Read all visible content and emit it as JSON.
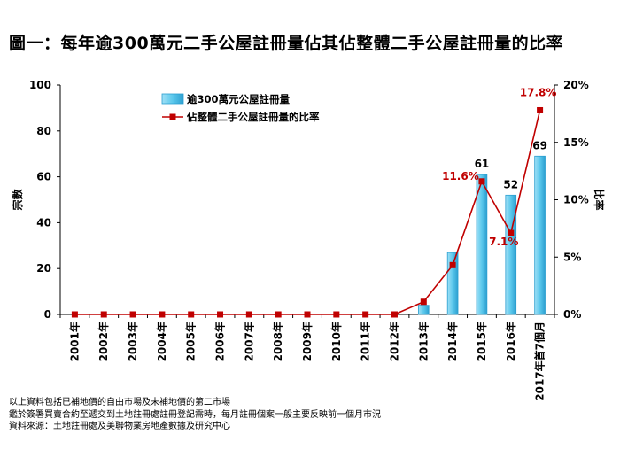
{
  "title": "圖一：每年逾300萬元二手公屋註冊量佔其佔整體二手公屋註冊量的比率",
  "chart_data": {
    "type": "bar+line",
    "categories": [
      "2001年",
      "2002年",
      "2003年",
      "2004年",
      "2005年",
      "2006年",
      "2007年",
      "2008年",
      "2009年",
      "2010年",
      "2011年",
      "2012年",
      "2013年",
      "2014年",
      "2015年",
      "2016年",
      "2017年首7個月"
    ],
    "series": [
      {
        "name": "逾300萬元公屋註冊量",
        "type": "bar",
        "axis": "left",
        "color": "#5bc8ec",
        "values": [
          0,
          0,
          0,
          0,
          0,
          0,
          0,
          0,
          0,
          0,
          0,
          0,
          4,
          27,
          61,
          52,
          69
        ],
        "data_labels": {
          "14": "61",
          "15": "52",
          "16": "69"
        }
      },
      {
        "name": "佔整體二手公屋註冊量的比率",
        "type": "line",
        "axis": "right",
        "color": "#c00000",
        "values": [
          0,
          0,
          0,
          0,
          0,
          0,
          0,
          0,
          0,
          0,
          0,
          0,
          1.1,
          4.3,
          11.6,
          7.1,
          17.8
        ],
        "data_labels": {
          "14": "11.6%",
          "15": "7.1%",
          "16": "17.8%"
        }
      }
    ],
    "ylabel": "宗數",
    "ylim": [
      0,
      100
    ],
    "yticks": [
      "0",
      "20",
      "40",
      "60",
      "80",
      "100"
    ],
    "y2label": "比率",
    "y2lim": [
      0,
      20
    ],
    "y2ticks": [
      "0%",
      "5%",
      "10%",
      "15%",
      "20%"
    ],
    "legend_position": "top-left",
    "grid": false
  },
  "notes": [
    "以上資料包括已補地價的自由市場及未補地價的第二市場",
    "鑑於簽署買賣合約至遞交到土地註冊處註冊登記需時，每月註冊個案一般主要反映前一個月市況",
    "資料來源：土地註冊處及美聯物業房地產數據及研究中心"
  ]
}
